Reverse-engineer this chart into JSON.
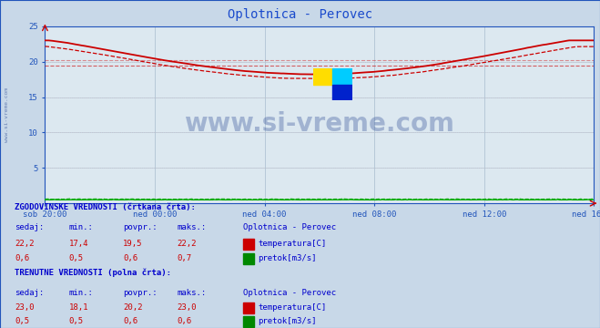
{
  "title": "Oplotnica - Perovec",
  "title_color": "#1a4acc",
  "bg_color": "#c8d8e8",
  "plot_bg_color": "#dce8f0",
  "grid_color": "#b0c4d4",
  "grid_minor_color": "#e8b0b0",
  "x_labels": [
    "sob 20:00",
    "ned 00:00",
    "ned 04:00",
    "ned 08:00",
    "ned 12:00",
    "ned 16:00"
  ],
  "x_ticks_norm": [
    0.0,
    0.2,
    0.4,
    0.6,
    0.8,
    1.0
  ],
  "y_min": 0,
  "y_max": 25,
  "y_ticks": [
    5,
    10,
    15,
    20,
    25
  ],
  "temp_color": "#cc0000",
  "flow_color": "#00aa00",
  "hist_avg": 19.5,
  "curr_avg": 20.2,
  "watermark_text": "www.si-vreme.com",
  "watermark_color": "#1a3a8a",
  "watermark_alpha": 0.3,
  "left_text": "www.si-vreme.com",
  "table_header_color": "#0000cc",
  "table_value_color": "#cc0000",
  "axis_color": "#2255bb",
  "n_points": 289,
  "logo_yellow": "#ffdd00",
  "logo_cyan": "#00ccff",
  "logo_blue": "#0022cc"
}
